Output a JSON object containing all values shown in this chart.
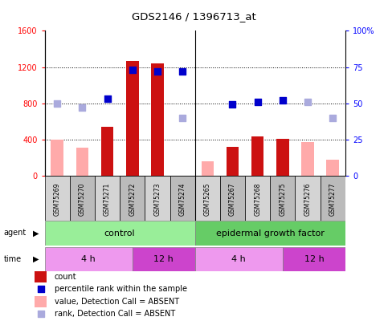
{
  "title": "GDS2146 / 1396713_at",
  "samples": [
    "GSM75269",
    "GSM75270",
    "GSM75271",
    "GSM75272",
    "GSM75273",
    "GSM75274",
    "GSM75265",
    "GSM75267",
    "GSM75268",
    "GSM75275",
    "GSM75276",
    "GSM75277"
  ],
  "count_values": [
    null,
    null,
    540,
    1270,
    1240,
    null,
    null,
    320,
    430,
    410,
    null,
    null
  ],
  "count_absent": [
    400,
    310,
    null,
    null,
    null,
    null,
    160,
    null,
    null,
    null,
    370,
    175
  ],
  "percentile_present_pct": [
    null,
    null,
    53,
    73,
    72,
    72,
    null,
    49,
    51,
    52,
    null,
    null
  ],
  "percentile_absent_pct": [
    50,
    47,
    null,
    null,
    null,
    40,
    null,
    null,
    null,
    null,
    51,
    40
  ],
  "ylim_left": [
    0,
    1600
  ],
  "ylim_right": [
    0,
    100
  ],
  "yticks_left": [
    0,
    400,
    800,
    1200,
    1600
  ],
  "yticks_right": [
    0,
    25,
    50,
    75,
    100
  ],
  "bar_color_present": "#cc1111",
  "bar_color_absent": "#ffaaaa",
  "dot_color_present": "#0000cc",
  "dot_color_absent": "#aaaadd",
  "agent_control_label": "control",
  "agent_egf_label": "epidermal growth factor",
  "agent_control_color": "#99ee99",
  "agent_egf_color": "#66cc66",
  "time_4h_color": "#ee99ee",
  "time_12h_color": "#cc44cc",
  "time_4h_label": "4 h",
  "time_12h_label": "12 h",
  "agent_label": "agent",
  "time_label": "time",
  "legend_count": "count",
  "legend_percentile": "percentile rank within the sample",
  "legend_value_absent": "value, Detection Call = ABSENT",
  "legend_rank_absent": "rank, Detection Call = ABSENT",
  "col_header_color_even": "#d4d4d4",
  "col_header_color_odd": "#bbbbbb",
  "separator_after": 5,
  "bar_width": 0.5,
  "dot_size": 40
}
